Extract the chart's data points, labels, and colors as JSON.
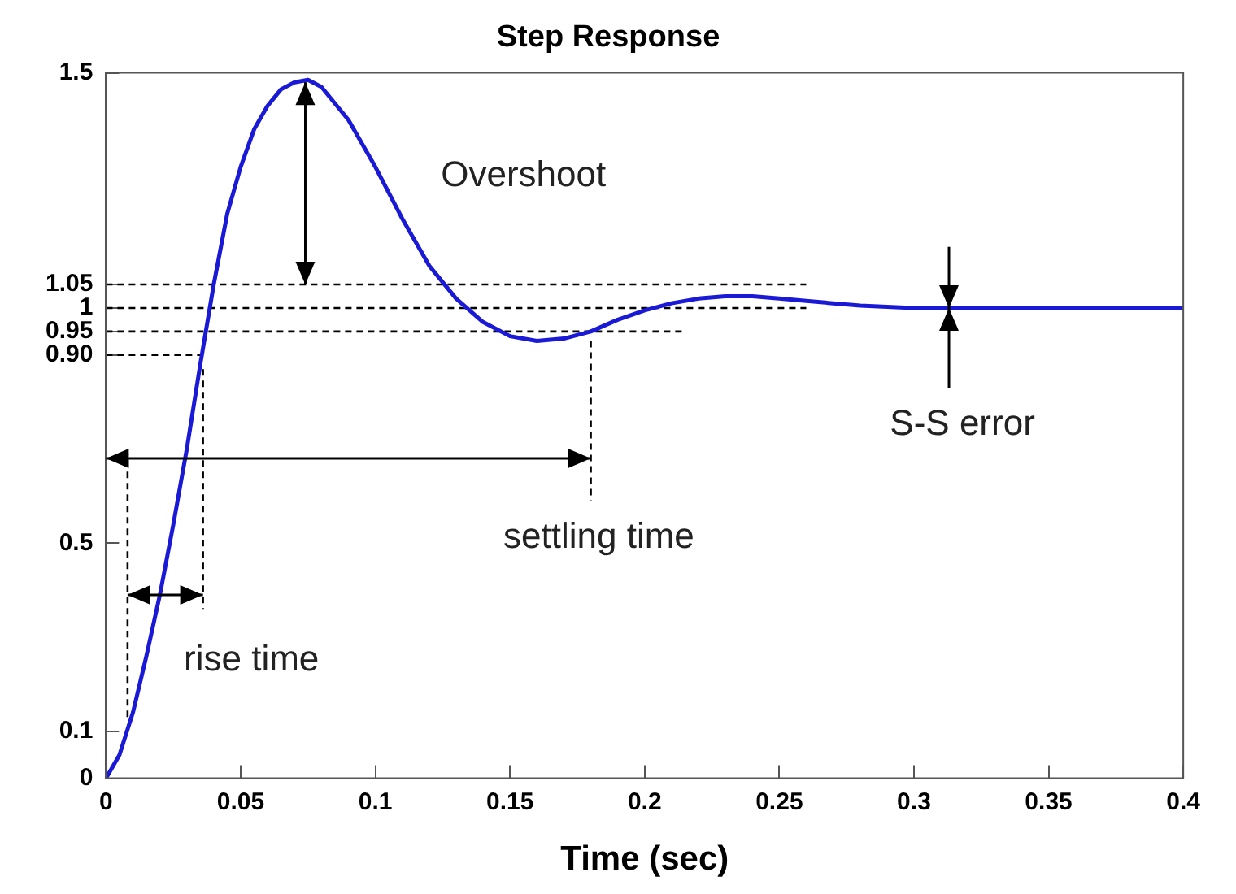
{
  "chart_data": {
    "type": "line",
    "title": "Step Response",
    "xlabel": "Time (sec)",
    "xlim": [
      0,
      0.4
    ],
    "ylim": [
      0,
      1.5
    ],
    "xticks": [
      0,
      0.05,
      0.1,
      0.15,
      0.2,
      0.25,
      0.3,
      0.35,
      0.4
    ],
    "yticks": [
      0,
      0.1,
      0.5,
      {
        "value": 0.9,
        "label": "0.90"
      },
      0.95,
      1,
      1.05,
      1.5
    ],
    "grid": false,
    "series": [
      {
        "color": "#1a1ad6",
        "line_style": "solid",
        "x": [
          0,
          0.005,
          0.01,
          0.015,
          0.02,
          0.025,
          0.03,
          0.035,
          0.04,
          0.045,
          0.05,
          0.055,
          0.06,
          0.065,
          0.07,
          0.075,
          0.08,
          0.09,
          0.1,
          0.11,
          0.12,
          0.13,
          0.14,
          0.15,
          0.16,
          0.17,
          0.18,
          0.19,
          0.2,
          0.21,
          0.22,
          0.23,
          0.24,
          0.25,
          0.26,
          0.28,
          0.3,
          0.35,
          0.4
        ],
        "values": [
          0,
          0.05,
          0.14,
          0.26,
          0.39,
          0.54,
          0.7,
          0.88,
          1.05,
          1.2,
          1.3,
          1.38,
          1.43,
          1.465,
          1.48,
          1.485,
          1.47,
          1.4,
          1.3,
          1.19,
          1.09,
          1.02,
          0.97,
          0.94,
          0.93,
          0.935,
          0.95,
          0.975,
          0.995,
          1.01,
          1.02,
          1.025,
          1.025,
          1.02,
          1.015,
          1.005,
          1,
          1,
          1
        ]
      },
      {
        "color": "#000000",
        "line_style": "dashed",
        "x": [
          0,
          0.26
        ],
        "values": [
          1.05,
          1.05
        ]
      },
      {
        "color": "#000000",
        "line_style": "dashed",
        "x": [
          0,
          0.26
        ],
        "values": [
          1,
          1
        ]
      },
      {
        "color": "#000000",
        "line_style": "dashed",
        "x": [
          0,
          0.215
        ],
        "values": [
          0.95,
          0.95
        ]
      },
      {
        "color": "#000000",
        "line_style": "dashed",
        "x": [
          0,
          0.036
        ],
        "values": [
          0.9,
          0.9
        ]
      },
      {
        "color": "#000000",
        "line_style": "dashed",
        "x": [
          0.008,
          0.008
        ],
        "values": [
          0.13,
          0.69
        ]
      },
      {
        "color": "#000000",
        "line_style": "dashed",
        "x": [
          0.036,
          0.036
        ],
        "values": [
          0.87,
          0.36
        ]
      },
      {
        "color": "#000000",
        "line_style": "dashed",
        "x": [
          0.18,
          0.18
        ],
        "values": [
          0.93,
          0.59
        ]
      }
    ],
    "annotations": [
      "Overshoot",
      "settling time",
      {
        "text": "rise time",
        "x": 0.022,
        "y": 0.39
      },
      {
        "text": "S-S error",
        "x": 0.313,
        "y": 1
      }
    ]
  }
}
